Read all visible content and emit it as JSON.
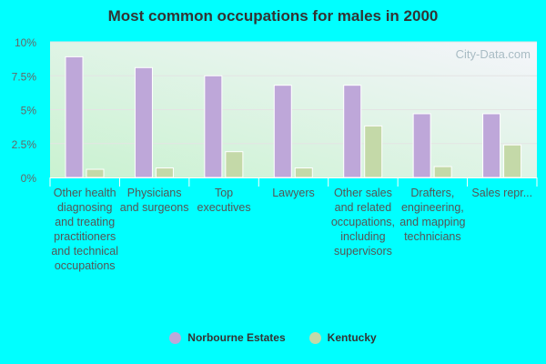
{
  "chart_data": {
    "type": "bar",
    "title": "Most common occupations for males in 2000",
    "categories": [
      "Other health diagnosing and treating practitioners and technical occupations",
      "Physicians and surgeons",
      "Top executives",
      "Lawyers",
      "Other sales and related occupations, including supervisors",
      "Drafters, engineering, and mapping technicians",
      "Sales repr..."
    ],
    "series": [
      {
        "name": "Norbourne Estates",
        "color": "#bea7d9",
        "values": [
          8.9,
          8.1,
          7.5,
          6.8,
          6.8,
          4.7,
          4.7
        ]
      },
      {
        "name": "Kentucky",
        "color": "#c4d9a8",
        "values": [
          0.6,
          0.7,
          1.9,
          0.7,
          3.8,
          0.8,
          2.4
        ]
      }
    ],
    "yticks": [
      "0%",
      "2.5%",
      "5%",
      "7.5%",
      "10%"
    ],
    "ylim": [
      0,
      10
    ],
    "xlabel": "",
    "ylabel": "",
    "grid": true,
    "legend": "bottom-center",
    "watermark": "City-Data.com"
  }
}
